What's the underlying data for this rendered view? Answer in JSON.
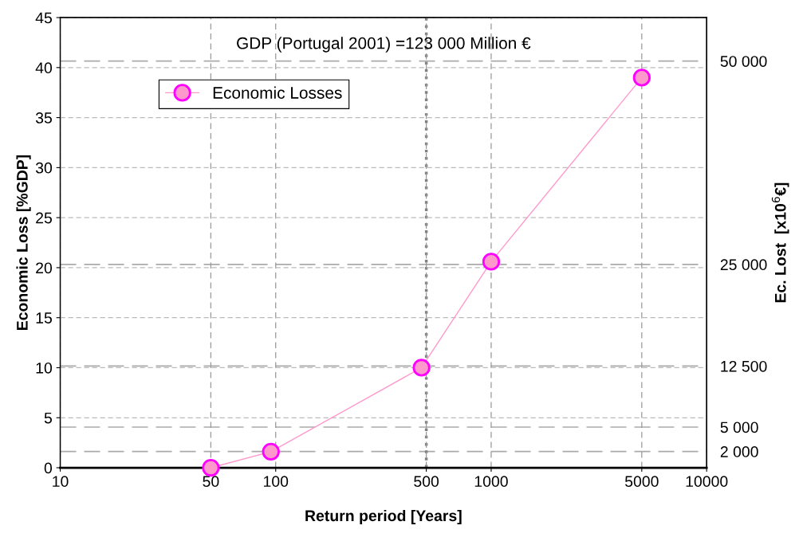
{
  "chart_data": {
    "type": "line",
    "xlabel": "Return period [Years]",
    "ylabel": "Economic Loss [%GDP]",
    "y2label": "Ec. Lost  [x10$^{6}$€]",
    "x": [
      50,
      95,
      475,
      1000,
      5000
    ],
    "series": [
      {
        "name": "Economic Losses",
        "color": "#ff99cc",
        "values": [
          0,
          1.6,
          10,
          20.6,
          39
        ]
      }
    ],
    "log": "x",
    "xlim": [
      10,
      10000
    ],
    "xticks": [
      10,
      50,
      100,
      500,
      1000,
      5000,
      10000
    ],
    "ylim": [
      0,
      45
    ],
    "yticks": [
      0,
      5,
      10,
      15,
      20,
      25,
      30,
      35,
      40,
      45
    ],
    "y2lim": [
      0,
      55350
    ],
    "y2ticks": [
      {
        "value": 2000,
        "label": "2 000"
      },
      {
        "value": 5000,
        "label": "5 000"
      },
      {
        "value": 12500,
        "label": "12 500"
      },
      {
        "value": 25000,
        "label": "25 000"
      },
      {
        "value": 50000,
        "label": "50 000"
      }
    ],
    "ref_lines": [
      {
        "axis": "x",
        "value": 500,
        "label": null,
        "color": "#808080",
        "line_style": "dotted"
      }
    ],
    "annotations": [
      "GDP (Portugal 2001) =123 000 Million €"
    ],
    "grid": true,
    "legend": "top left",
    "marker": "circle",
    "line_style": "solid"
  }
}
